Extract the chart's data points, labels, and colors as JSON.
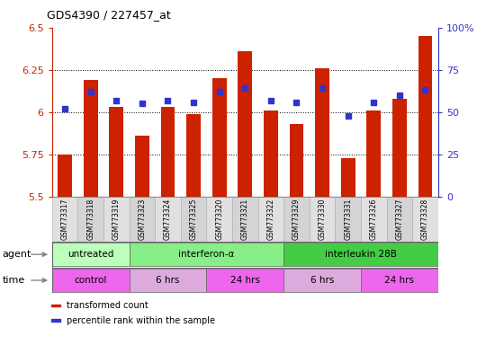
{
  "title": "GDS4390 / 227457_at",
  "samples": [
    "GSM773317",
    "GSM773318",
    "GSM773319",
    "GSM773323",
    "GSM773324",
    "GSM773325",
    "GSM773320",
    "GSM773321",
    "GSM773322",
    "GSM773329",
    "GSM773330",
    "GSM773331",
    "GSM773326",
    "GSM773327",
    "GSM773328"
  ],
  "red_values": [
    5.75,
    6.19,
    6.03,
    5.86,
    6.03,
    5.99,
    6.2,
    6.36,
    6.01,
    5.93,
    6.26,
    5.73,
    6.01,
    6.08,
    6.45
  ],
  "blue_values_pct": [
    52,
    62,
    57,
    55,
    57,
    56,
    62,
    64,
    57,
    56,
    64,
    48,
    56,
    60,
    63
  ],
  "ylim_left": [
    5.5,
    6.5
  ],
  "ylim_right": [
    0,
    100
  ],
  "yticks_left": [
    5.5,
    5.75,
    6.0,
    6.25,
    6.5
  ],
  "yticks_right": [
    0,
    25,
    50,
    75,
    100
  ],
  "ytick_labels_left": [
    "5.5",
    "5.75",
    "6",
    "6.25",
    "6.5"
  ],
  "ytick_labels_right": [
    "0",
    "25",
    "50",
    "75",
    "100%"
  ],
  "dotted_lines": [
    5.75,
    6.0,
    6.25
  ],
  "bar_color": "#cc2200",
  "dot_color": "#3333cc",
  "bar_bottom": 5.5,
  "sample_bg_odd": "#d4d4d4",
  "sample_bg_even": "#e0e0e0",
  "agent_groups": [
    {
      "label": "untreated",
      "start": 0,
      "end": 3,
      "color": "#bbffbb"
    },
    {
      "label": "interferon-α",
      "start": 3,
      "end": 9,
      "color": "#88ee88"
    },
    {
      "label": "interleukin 28B",
      "start": 9,
      "end": 15,
      "color": "#44cc44"
    }
  ],
  "time_groups": [
    {
      "label": "control",
      "start": 0,
      "end": 3,
      "color": "#ee66ee"
    },
    {
      "label": "6 hrs",
      "start": 3,
      "end": 6,
      "color": "#ddaadd"
    },
    {
      "label": "24 hrs",
      "start": 6,
      "end": 9,
      "color": "#ee66ee"
    },
    {
      "label": "6 hrs",
      "start": 9,
      "end": 12,
      "color": "#ddaadd"
    },
    {
      "label": "24 hrs",
      "start": 12,
      "end": 15,
      "color": "#ee66ee"
    }
  ],
  "legend_items": [
    {
      "color": "#cc2200",
      "label": "transformed count"
    },
    {
      "color": "#3333cc",
      "label": "percentile rank within the sample"
    }
  ],
  "left_axis_color": "#cc2200",
  "right_axis_color": "#3333cc",
  "bg_color": "#ffffff"
}
